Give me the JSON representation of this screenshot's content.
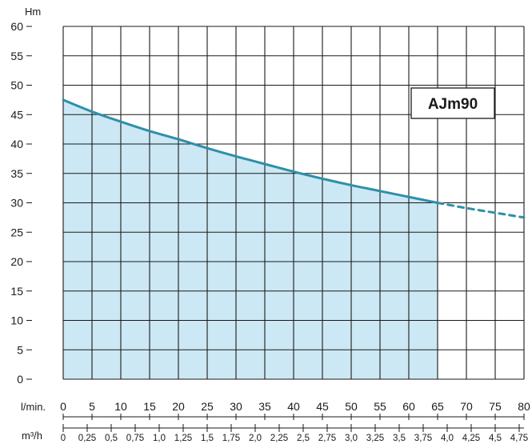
{
  "chart_data": {
    "type": "area",
    "title": "",
    "model": "AJm90",
    "ylabel": "Hm",
    "ylim": [
      0,
      60
    ],
    "y_ticks": [
      "0",
      "5",
      "10",
      "15",
      "20",
      "25",
      "30",
      "35",
      "40",
      "45",
      "50",
      "55",
      "60"
    ],
    "x_primary": {
      "label": "l/min.",
      "lim": [
        0,
        80
      ],
      "ticks": [
        "0",
        "5",
        "10",
        "15",
        "20",
        "25",
        "30",
        "35",
        "40",
        "45",
        "50",
        "55",
        "60",
        "65",
        "70",
        "75",
        "80"
      ]
    },
    "x_secondary": {
      "label": "m³/h",
      "ticks": [
        "0",
        "0,25",
        "0,5",
        "0,75",
        "1,0",
        "1,25",
        "1,5",
        "1,75",
        "2,0",
        "2,25",
        "2,5",
        "2,75",
        "3,0",
        "3,25",
        "3,5",
        "3,75",
        "4,0",
        "4,25",
        "4,5",
        "4,75"
      ]
    },
    "grid": true,
    "series": [
      {
        "style": "solid",
        "x": [
          0,
          5,
          10,
          15,
          20,
          25,
          30,
          35,
          40,
          45,
          50,
          55,
          60,
          65
        ],
        "y": [
          47.5,
          45.5,
          43.8,
          42.2,
          40.8,
          39.3,
          37.9,
          36.6,
          35.3,
          34.1,
          33.0,
          32.0,
          31.0,
          30.0
        ]
      },
      {
        "style": "dashed",
        "x": [
          65,
          70,
          75,
          80
        ],
        "y": [
          30.0,
          29.1,
          28.3,
          27.5
        ]
      }
    ],
    "fill_range": [
      0,
      65
    ],
    "colors": {
      "curve": "#2e8fa8",
      "fill": "#cce8f4",
      "grid": "#1a1a1a"
    }
  }
}
